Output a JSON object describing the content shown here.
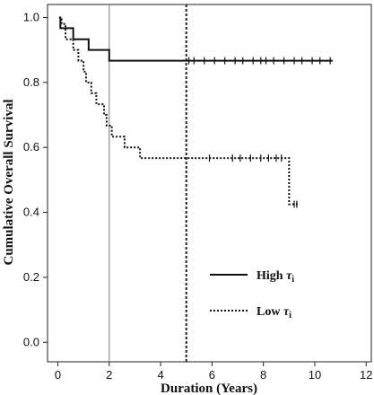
{
  "chart_data": {
    "type": "line",
    "subtype": "kaplan-meier",
    "xlabel": "Duration (Years)",
    "ylabel": "Cumulative Overall Survival",
    "xlim": [
      -0.4,
      12.2
    ],
    "ylim": [
      -0.06,
      1.04
    ],
    "x_ticks": [
      0,
      2,
      4,
      6,
      8,
      10,
      12
    ],
    "y_ticks": [
      0.0,
      0.2,
      0.4,
      0.6,
      0.8,
      1.0
    ],
    "x_tick_labels": [
      "0",
      "2",
      "4",
      "6",
      "8",
      "10",
      "12"
    ],
    "y_tick_labels": [
      "0.0",
      "0.2",
      "0.4",
      "0.6",
      "0.8",
      "1.0"
    ],
    "reference_lines": [
      {
        "axis": "x",
        "value": 2,
        "style": "solid"
      },
      {
        "axis": "x",
        "value": 5,
        "style": "dotted"
      }
    ],
    "legend": {
      "position": "bottom-right",
      "entries": [
        {
          "label_prefix": "High ",
          "symbol": "τ",
          "subscript": "i",
          "style": "solid"
        },
        {
          "label_prefix": "Low ",
          "symbol": "τ",
          "subscript": "i",
          "style": "dotted"
        }
      ]
    },
    "series": [
      {
        "style": "solid",
        "steps": [
          [
            0.05,
            1.0
          ],
          [
            0.1,
            0.967
          ],
          [
            0.6,
            0.933
          ],
          [
            1.2,
            0.9
          ],
          [
            2.0,
            0.867
          ],
          [
            10.7,
            0.867
          ]
        ],
        "censored": [
          5.1,
          5.3,
          5.7,
          6.1,
          6.5,
          6.9,
          7.2,
          7.6,
          7.9,
          8.1,
          8.4,
          8.8,
          9.2,
          9.5,
          9.9,
          10.2,
          10.6
        ]
      },
      {
        "style": "dotted",
        "steps": [
          [
            0.05,
            1.0
          ],
          [
            0.15,
            0.98
          ],
          [
            0.3,
            0.933
          ],
          [
            0.6,
            0.9
          ],
          [
            0.8,
            0.867
          ],
          [
            1.0,
            0.833
          ],
          [
            1.1,
            0.8
          ],
          [
            1.3,
            0.767
          ],
          [
            1.5,
            0.733
          ],
          [
            1.8,
            0.7
          ],
          [
            1.9,
            0.667
          ],
          [
            2.1,
            0.633
          ],
          [
            2.6,
            0.6
          ],
          [
            3.2,
            0.567
          ],
          [
            8.9,
            0.567
          ],
          [
            9.0,
            0.425
          ],
          [
            9.4,
            0.425
          ]
        ],
        "censored": [
          5.9,
          6.8,
          7.1,
          7.5,
          7.9,
          8.2,
          8.5,
          8.7,
          9.2,
          9.3
        ]
      }
    ]
  }
}
